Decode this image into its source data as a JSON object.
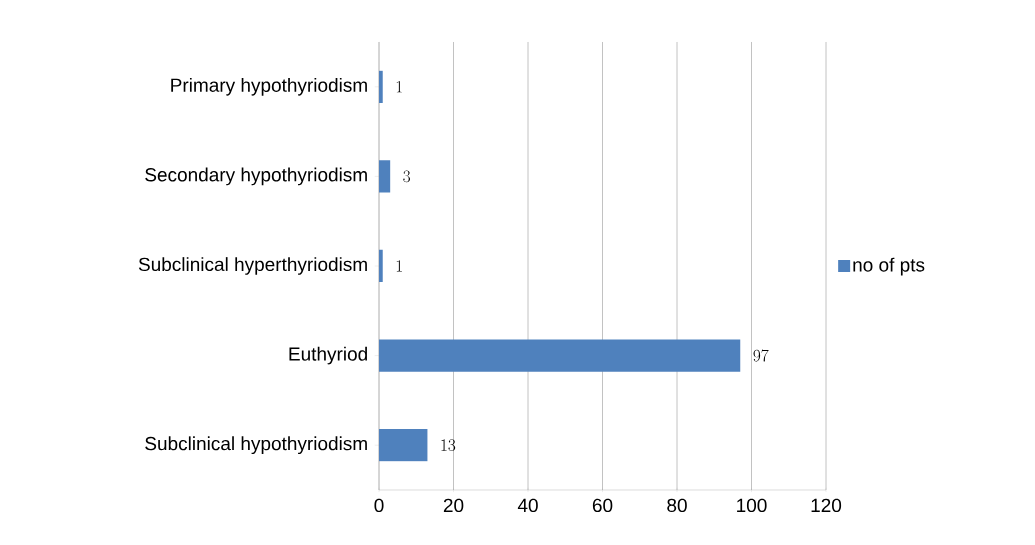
{
  "chart_data": {
    "type": "bar",
    "orientation": "horizontal",
    "categories": [
      "Primary hypothyriodism",
      "Secondary hypothyriodism",
      "Subclinical hyperthyriodism",
      "Euthyriod",
      "Subclinical hypothyriodism"
    ],
    "series": [
      {
        "name": "no of pts",
        "color": "#4f81bd",
        "values": [
          1,
          3,
          1,
          97,
          13
        ]
      }
    ],
    "xlim": [
      0,
      120
    ],
    "xticks": [
      0,
      20,
      40,
      60,
      80,
      100,
      120
    ],
    "grid": "x",
    "legend": "right",
    "data_labels": true
  }
}
